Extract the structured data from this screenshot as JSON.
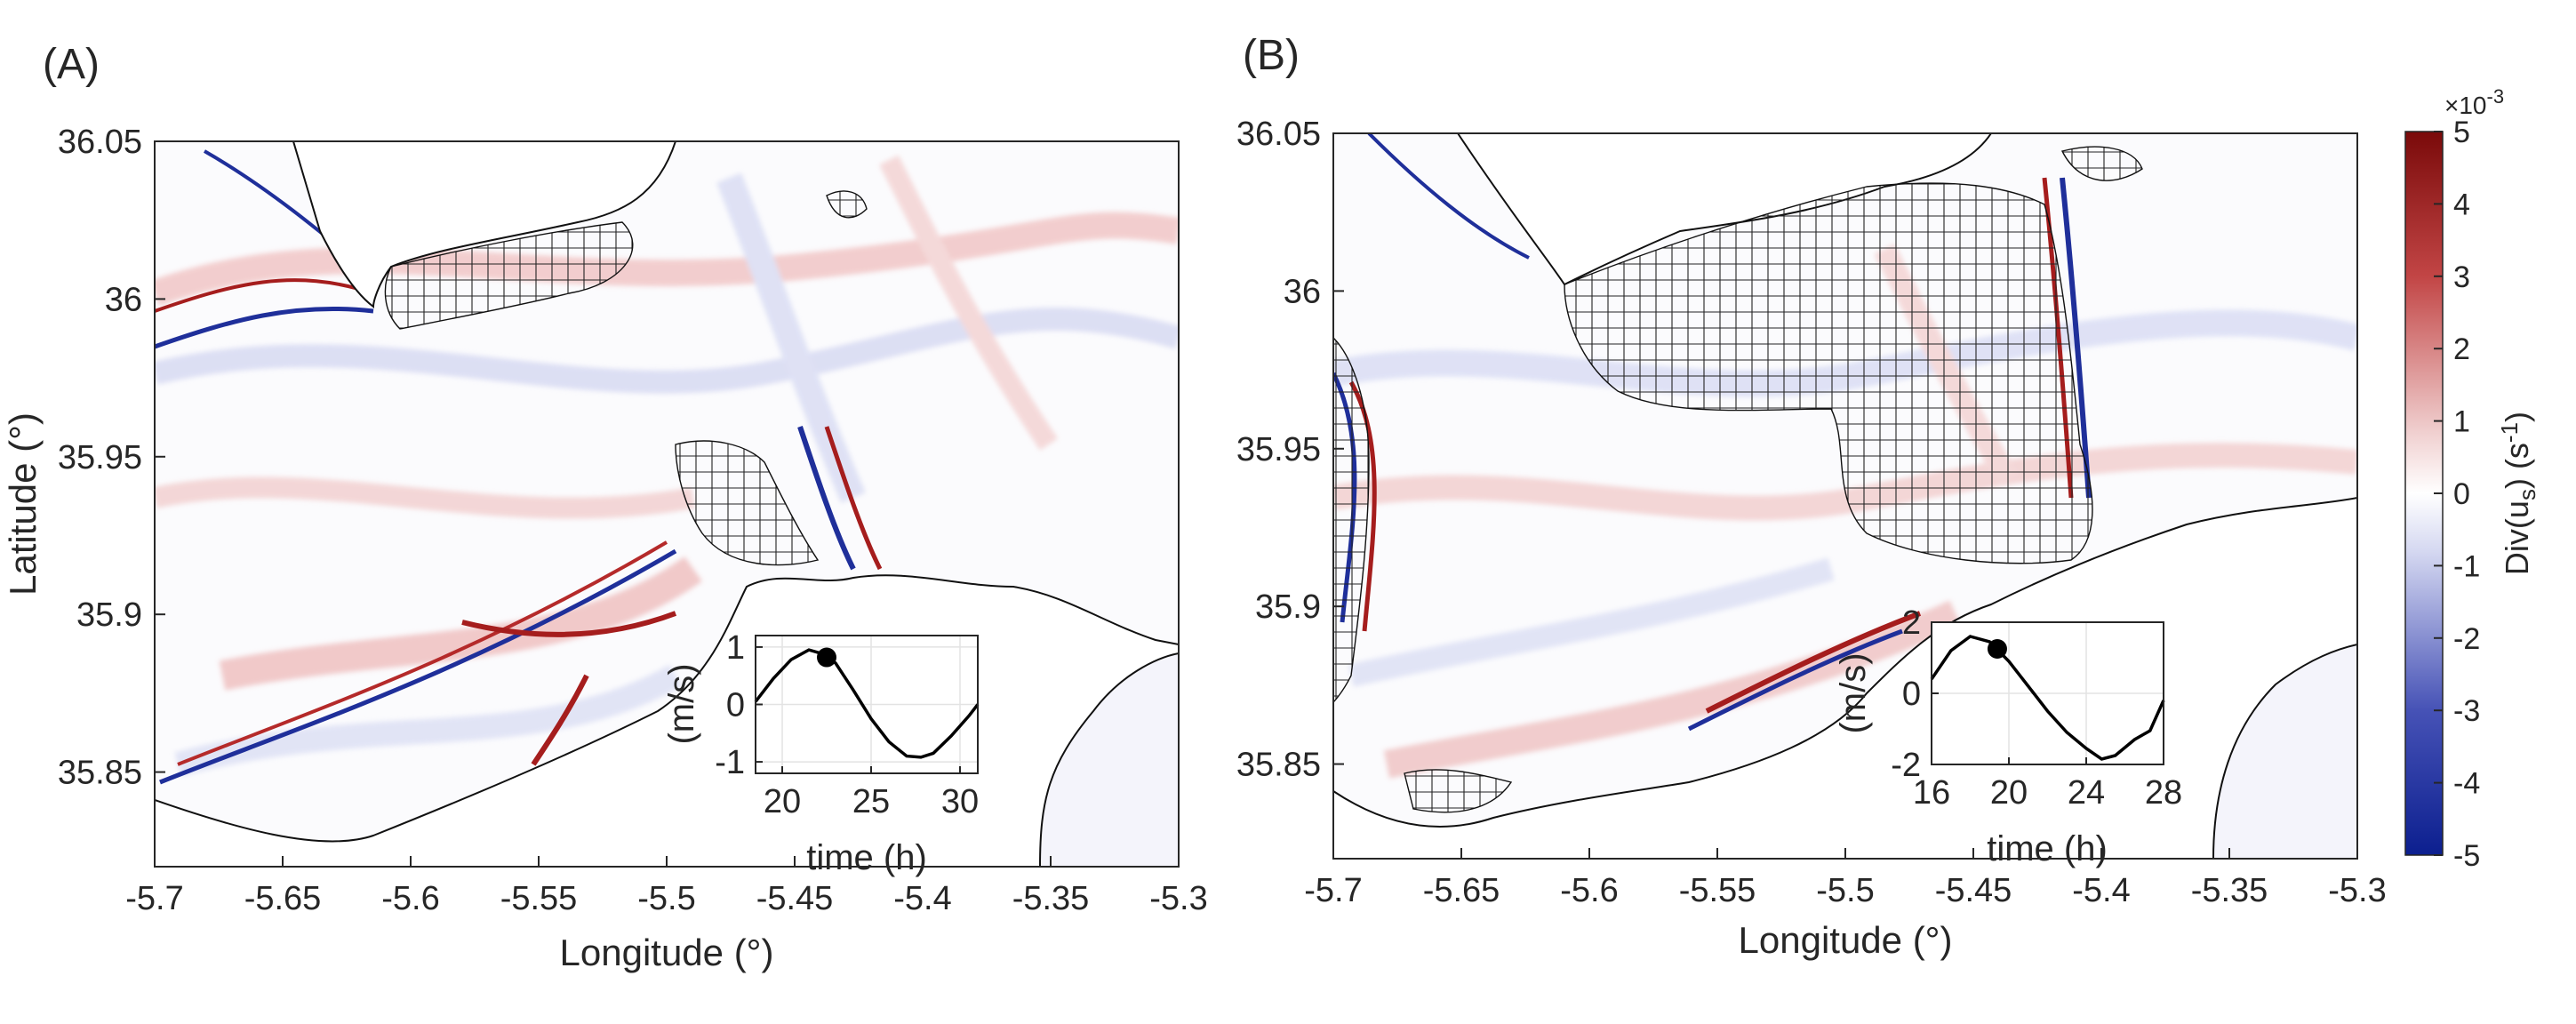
{
  "panel_labels": [
    "(A)",
    "(B)"
  ],
  "colorbar": {
    "label": "Div(u_s) (s^-1)",
    "label_main": "Div(u",
    "label_sub": "s",
    "label_mid": ") (s",
    "label_sup": "-1",
    "label_end": ")",
    "exponent_base": "×10",
    "exponent": "-3",
    "ticks": [
      5,
      4,
      3,
      2,
      1,
      0,
      -1,
      -2,
      -3,
      -4,
      -5
    ],
    "range": [
      -5,
      5
    ],
    "colors": {
      "neg": "#0c1f8f",
      "mid": "#ffffff",
      "pos": "#7a0a0a"
    }
  },
  "chart_data": [
    {
      "type": "heatmap",
      "panel": "(A)",
      "xlabel": "Longitude (°)",
      "ylabel": "Latitude (°)",
      "xlim": [
        -5.7,
        -5.3
      ],
      "ylim": [
        35.82,
        36.05
      ],
      "xticks": [
        -5.7,
        -5.65,
        -5.6,
        -5.55,
        -5.5,
        -5.45,
        -5.4,
        -5.35,
        -5.3
      ],
      "xticklabels": [
        "-5.7",
        "-5.65",
        "-5.6",
        "-5.55",
        "-5.5",
        "-5.45",
        "-5.4",
        "-5.35",
        "-5.3"
      ],
      "yticks": [
        35.85,
        35.9,
        35.95,
        36.0,
        36.05
      ],
      "yticklabels": [
        "35.85",
        "35.9",
        "35.95",
        "36",
        "36.05"
      ],
      "inset": {
        "type": "line",
        "xlabel": "time (h)",
        "ylabel": "(m/s)",
        "xlim": [
          18.5,
          31
        ],
        "ylim": [
          -1.2,
          1.2
        ],
        "xticks": [
          20,
          25,
          30
        ],
        "xticklabels": [
          "20",
          "25",
          "30"
        ],
        "yticks": [
          1,
          0,
          -1
        ],
        "yticklabels": [
          "1",
          "0",
          "-1"
        ],
        "x": [
          18.5,
          19.5,
          20.5,
          21.5,
          22.3,
          23.0,
          24.0,
          25.0,
          26.0,
          27.0,
          27.8,
          28.5,
          29.5,
          30.5,
          31.0
        ],
        "y": [
          0.05,
          0.45,
          0.78,
          0.95,
          0.88,
          0.72,
          0.25,
          -0.25,
          -0.65,
          -0.9,
          -0.92,
          -0.85,
          -0.55,
          -0.2,
          0.0
        ],
        "marker": {
          "x": 22.5,
          "y": 0.82
        }
      }
    },
    {
      "type": "heatmap",
      "panel": "(B)",
      "xlabel": "Longitude (°)",
      "ylabel": "",
      "xlim": [
        -5.7,
        -5.3
      ],
      "ylim": [
        35.82,
        36.05
      ],
      "xticks": [
        -5.7,
        -5.65,
        -5.6,
        -5.55,
        -5.5,
        -5.45,
        -5.4,
        -5.35,
        -5.3
      ],
      "xticklabels": [
        "-5.7",
        "-5.65",
        "-5.6",
        "-5.55",
        "-5.5",
        "-5.45",
        "-5.4",
        "-5.35",
        "-5.3"
      ],
      "yticks": [
        35.85,
        35.9,
        35.95,
        36.0,
        36.05
      ],
      "yticklabels": [
        "35.85",
        "35.9",
        "35.95",
        "36",
        "36.05"
      ],
      "inset": {
        "type": "line",
        "xlabel": "time (h)",
        "ylabel": "(m/s)",
        "xlim": [
          16,
          28
        ],
        "ylim": [
          -2,
          2
        ],
        "xticks": [
          16,
          20,
          24,
          28
        ],
        "xticklabels": [
          "16",
          "20",
          "24",
          "28"
        ],
        "yticks": [
          2,
          0,
          -2
        ],
        "yticklabels": [
          "2",
          "0",
          "-2"
        ],
        "x": [
          16,
          17,
          18,
          19,
          20,
          21,
          22,
          23,
          24,
          24.8,
          25.5,
          26.5,
          27.3,
          28
        ],
        "y": [
          0.4,
          1.2,
          1.6,
          1.45,
          0.9,
          0.2,
          -0.5,
          -1.1,
          -1.55,
          -1.85,
          -1.75,
          -1.3,
          -1.05,
          -0.2
        ],
        "marker": {
          "x": 19.4,
          "y": 1.25
        }
      }
    }
  ]
}
